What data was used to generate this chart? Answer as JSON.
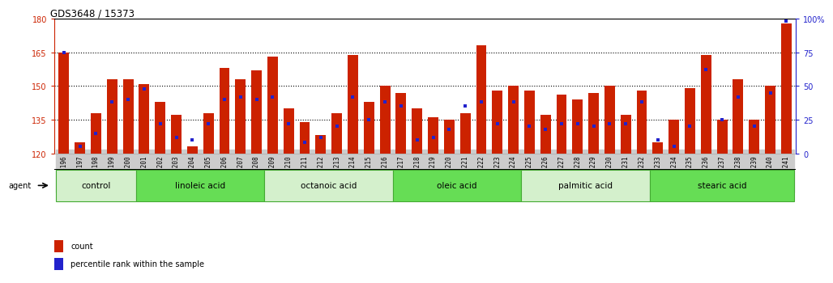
{
  "title": "GDS3648 / 15373",
  "samples": [
    "GSM525196",
    "GSM525197",
    "GSM525198",
    "GSM525199",
    "GSM525200",
    "GSM525201",
    "GSM525202",
    "GSM525203",
    "GSM525204",
    "GSM525205",
    "GSM525206",
    "GSM525207",
    "GSM525208",
    "GSM525209",
    "GSM525210",
    "GSM525211",
    "GSM525212",
    "GSM525213",
    "GSM525214",
    "GSM525215",
    "GSM525216",
    "GSM525217",
    "GSM525218",
    "GSM525219",
    "GSM525220",
    "GSM525221",
    "GSM525222",
    "GSM525223",
    "GSM525224",
    "GSM525225",
    "GSM525226",
    "GSM525227",
    "GSM525228",
    "GSM525229",
    "GSM525230",
    "GSM525231",
    "GSM525232",
    "GSM525233",
    "GSM525234",
    "GSM525235",
    "GSM525236",
    "GSM525237",
    "GSM525238",
    "GSM525239",
    "GSM525240",
    "GSM525241"
  ],
  "counts": [
    165,
    125,
    138,
    153,
    153,
    151,
    143,
    137,
    123,
    138,
    158,
    153,
    157,
    163,
    140,
    134,
    128,
    138,
    164,
    143,
    150,
    147,
    140,
    136,
    135,
    138,
    168,
    148,
    150,
    148,
    137,
    146,
    144,
    147,
    150,
    137,
    148,
    125,
    135,
    149,
    164,
    135,
    153,
    135,
    150,
    178
  ],
  "percentile_ranks": [
    75,
    5,
    15,
    38,
    40,
    48,
    22,
    12,
    10,
    22,
    40,
    42,
    40,
    42,
    22,
    8,
    12,
    20,
    42,
    25,
    38,
    35,
    10,
    12,
    18,
    35,
    38,
    22,
    38,
    20,
    18,
    22,
    22,
    20,
    22,
    22,
    38,
    10,
    5,
    20,
    62,
    25,
    42,
    20,
    45,
    98
  ],
  "groups": [
    {
      "label": "control",
      "start": 0,
      "end": 5,
      "color": "#d4f0cc"
    },
    {
      "label": "linoleic acid",
      "start": 5,
      "end": 13,
      "color": "#66dd55"
    },
    {
      "label": "octanoic acid",
      "start": 13,
      "end": 21,
      "color": "#d4f0cc"
    },
    {
      "label": "oleic acid",
      "start": 21,
      "end": 29,
      "color": "#66dd55"
    },
    {
      "label": "palmitic acid",
      "start": 29,
      "end": 37,
      "color": "#d4f0cc"
    },
    {
      "label": "stearic acid",
      "start": 37,
      "end": 46,
      "color": "#66dd55"
    }
  ],
  "group_edge_color": "#44aa33",
  "ymin": 120,
  "ymax": 180,
  "yticks_left": [
    120,
    135,
    150,
    165,
    180
  ],
  "yticks_right": [
    0,
    25,
    50,
    75,
    100
  ],
  "ytick_right_labels": [
    "0",
    "25",
    "50",
    "75",
    "100%"
  ],
  "dotted_lines": [
    135,
    150,
    165
  ],
  "bar_color": "#cc2200",
  "marker_color": "#2222cc",
  "tick_bg_color": "#cccccc",
  "left_tick_color": "#cc2200",
  "right_tick_color": "#2222cc"
}
